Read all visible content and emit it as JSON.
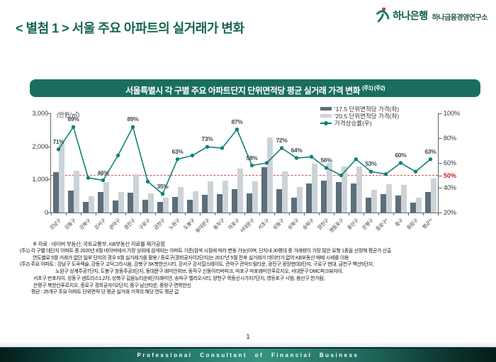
{
  "header": {
    "title": "< 별첨 1 > 서울 주요 아파트의 실거래가 변화",
    "logo": {
      "bank": "하나은행",
      "institute": "하나금융경영연구소"
    }
  },
  "banner": {
    "title": "서울특별시 각 구별 주요 아파트단지 단위면적당 평균 실거래 가격 변화",
    "superscript": "(주1) (주2)"
  },
  "chart_data": {
    "type": "bar",
    "title": "서울특별시 각 구별 주요 아파트단지 단위면적당 평균 실거래 가격 변화",
    "unit_label": "(만원/㎡)",
    "categories": [
      "강남구",
      "강동구",
      "강북구",
      "강서구",
      "관악구",
      "광진구",
      "구로구",
      "금천구",
      "노원구",
      "도봉구",
      "동대문구",
      "동작구",
      "마포구",
      "서대문구",
      "서초구",
      "성동구",
      "성북구",
      "송파구",
      "양천구",
      "영등포구",
      "용산구",
      "은평구",
      "종로구*",
      "중구",
      "중랑구",
      "평균**"
    ],
    "series": [
      {
        "name": "'17.5 단위면적당 가격(좌)",
        "type": "bar",
        "values": [
          1230,
          660,
          330,
          620,
          360,
          610,
          390,
          330,
          470,
          390,
          540,
          560,
          700,
          590,
          1370,
          700,
          460,
          870,
          970,
          930,
          870,
          450,
          560,
          520,
          300,
          630
        ]
      },
      {
        "name": "'20.5 단위면적당 가격(좌)",
        "type": "bar",
        "values": [
          2070,
          1270,
          490,
          930,
          630,
          1160,
          570,
          450,
          770,
          650,
          940,
          960,
          1320,
          950,
          2280,
          1250,
          770,
          1470,
          1510,
          1390,
          1390,
          690,
          850,
          830,
          460,
          1030
        ]
      },
      {
        "name": "가격상승률(우)",
        "type": "line",
        "values": [
          71,
          89,
          48,
          46,
          66,
          89,
          45,
          35,
          63,
          66,
          73,
          72,
          87,
          58,
          60,
          72,
          64,
          65,
          56,
          50,
          63,
          53,
          51,
          60,
          53,
          63
        ],
        "labels_shown": [
          true,
          true,
          false,
          true,
          false,
          true,
          false,
          true,
          true,
          false,
          true,
          false,
          true,
          true,
          false,
          true,
          true,
          false,
          true,
          false,
          false,
          true,
          false,
          true,
          false,
          true
        ]
      }
    ],
    "left_axis": {
      "range": [
        0,
        3000
      ],
      "ticks": [
        3000,
        2000,
        1000,
        0
      ],
      "labels": [
        "3,000",
        "2,000",
        "1,000",
        "0"
      ]
    },
    "right_axis": {
      "range": [
        20,
        100
      ],
      "ticks": [
        100,
        80,
        60,
        50,
        40,
        20
      ],
      "labels": [
        "100%",
        "80%",
        "60%",
        "50%",
        "40%",
        "20%"
      ],
      "highlighted_label": "50%"
    },
    "reference_line": {
      "value": 50,
      "style": "dashed",
      "color": "#e04848"
    },
    "legend_position": "top-right",
    "grid": false,
    "colors": {
      "bar_2017": "#5b6f7a",
      "bar_2020": "#ccd3d8",
      "line": "#0e8375",
      "reference": "#e04848",
      "accent_green": "#1b6e5e"
    }
  },
  "notes": {
    "source": "※ 자료 : 네이버 부동산, 국토교통부, KB부동산 자료를 재가공함",
    "note1_line1": "(주1) 각 구별 대단지 아파트 중 2020년 8월 네이버에서 가장 상위에 검색되는 아파트 기준(검색 시점에 따라 변동 가능)이며, 단지내 30평대 중 거래량이 가장 많은 유형 1종을 선정해 평균가 산출",
    "note1_line2": "연도별로 5월 거래가 없던 일부 단지의 경우 6월 실거래가를 활용 / 종로구(경희궁자이2단지)는 2017년 5월 전후 실거래가 데이터가 없어 KB부동산 매매 시세를 이용",
    "note2_line1": "(주2) 주요 아파트 : 강남구 도곡렉슬, 강동구 고덕그라시움, 강북구 SK북한산시티, 강서구 강서힐스테이트, 관악구 관악드림타운, 광진구 광장현대3단지, 구로구 현대, 금천구 벽산5단지,",
    "note2_line2": "노원구 상계주공7단지, 도봉구 창동주공3단지, 동대문구 래미안위브, 동작구 신동아리버파크, 마포구 마포래미안푸르지오, 서대문구 DMC파크뷰자이,",
    "note2_line3": "서초구 반포자이, 성동구 센트라스1,2차, 성북구 길음뉴타운8단지래미안, 송파구 헬리오시티, 양천구 목동신시가지7단지, 영등포구 시범, 용산구 한가람,",
    "note2_line4": "은평구 북한산푸르지오, 종로구 경희궁자이2단지, 중구 남산타운, 중랑구 면목한신",
    "avg_note": "평균 : 25개구 주요 아파트 단위면적 당 평균 실거래 가격의 해당 연도 평균 값"
  },
  "footer": {
    "page_number": "1",
    "slogan": "Professional Consultant of Financial Business"
  }
}
